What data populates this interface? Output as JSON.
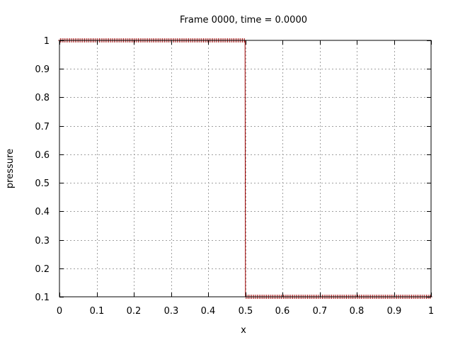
{
  "chart_data": {
    "type": "line",
    "title": "Frame 0000, time = 0.0000",
    "xlabel": "x",
    "ylabel": "pressure",
    "xlim": [
      0,
      1
    ],
    "ylim": [
      0.1,
      1
    ],
    "x_ticks": [
      "0",
      "0.1",
      "0.2",
      "0.3",
      "0.4",
      "0.5",
      "0.6",
      "0.7",
      "0.8",
      "0.9",
      "1"
    ],
    "y_ticks": [
      "0.1",
      "0.2",
      "0.3",
      "0.4",
      "0.5",
      "0.6",
      "0.7",
      "0.8",
      "0.9",
      "1"
    ],
    "grid": true,
    "legend": "none",
    "series": [
      {
        "color": "#a00000",
        "marker": "plus",
        "x": [
          0.0,
          0.499,
          0.4995,
          0.5,
          0.5005,
          0.501,
          1.0
        ],
        "y": [
          1.0,
          1.0,
          1.0,
          0.55,
          0.1,
          0.1,
          0.1
        ]
      }
    ]
  }
}
